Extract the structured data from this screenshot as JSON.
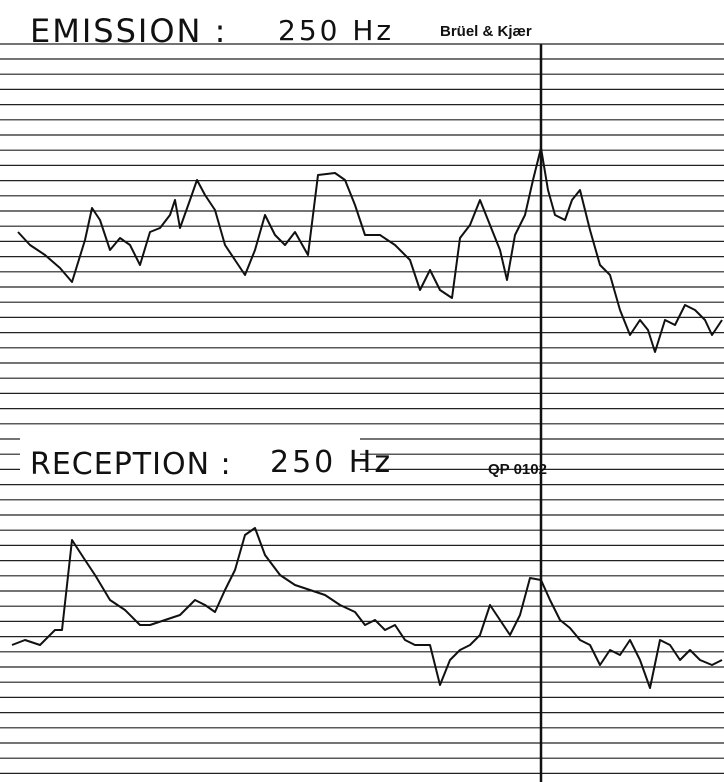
{
  "emission": {
    "label": "EMISSION :",
    "frequency": "250 Hz",
    "brand": "Brüel & Kjær"
  },
  "reception": {
    "label": "RECEPTION :",
    "frequency": "250 Hz",
    "reference": "QP 0102"
  }
}
